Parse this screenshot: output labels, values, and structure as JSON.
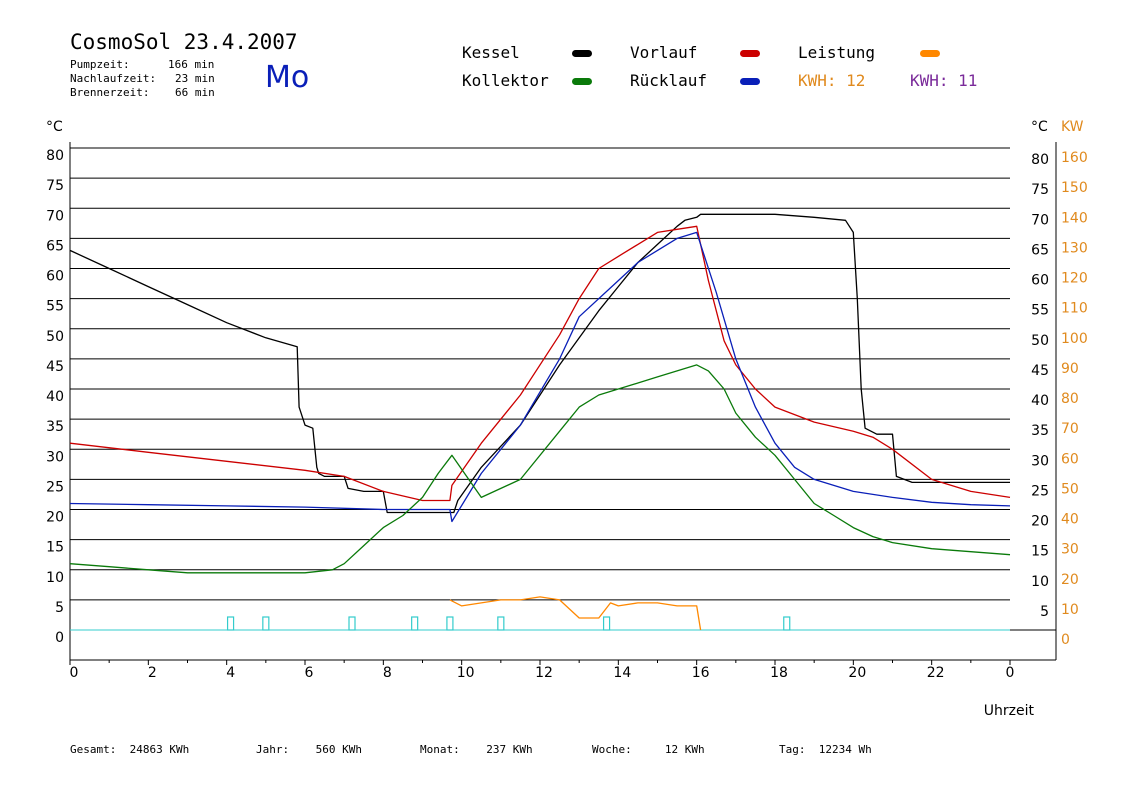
{
  "header": {
    "title": "CosmoSol 23.4.2007",
    "weekday": "Mo",
    "stats": [
      {
        "label": "Pumpzeit:",
        "value": "166 min"
      },
      {
        "label": "Nachlaufzeit:",
        "value": "23 min"
      },
      {
        "label": "Brennerzeit:",
        "value": "66 min"
      }
    ]
  },
  "legend": {
    "kessel": "Kessel",
    "kollektor": "Kollektor",
    "vorlauf": "Vorlauf",
    "ruecklauf": "Rücklauf",
    "leistung": "Leistung",
    "kwh1_label": "KWH:",
    "kwh1_value": "12",
    "kwh2_label": "KWH:",
    "kwh2_value": "11"
  },
  "footer": {
    "gesamt_label": "Gesamt:",
    "gesamt_value": "24863 KWh",
    "jahr_label": "Jahr:",
    "jahr_value": "560 KWh",
    "monat_label": "Monat:",
    "monat_value": "237 KWh",
    "woche_label": "Woche:",
    "woche_value": "12 KWh",
    "tag_label": "Tag:",
    "tag_value": "12234 Wh"
  },
  "colors": {
    "kessel": "#000000",
    "kollektor": "#0a7a0a",
    "vorlauf": "#cc0000",
    "ruecklauf": "#0a1fb8",
    "leistung": "#ff8800",
    "kwh2": "#7a2a9a",
    "pump": "#33cccc",
    "right_axis": "#e08a1e"
  },
  "chart_data": {
    "type": "line",
    "xlabel": "Uhrzeit",
    "ylabel_left": "°C",
    "ylabel_right_temp": "°C",
    "ylabel_right_power": "KW",
    "xlim": [
      0,
      24
    ],
    "ylim": [
      0,
      80
    ],
    "x_ticks": [
      "0",
      "2",
      "4",
      "6",
      "8",
      "10",
      "12",
      "14",
      "16",
      "18",
      "20",
      "22",
      "0"
    ],
    "y_ticks_left": [
      "0",
      "5",
      "10",
      "15",
      "20",
      "25",
      "30",
      "35",
      "40",
      "45",
      "50",
      "55",
      "60",
      "65",
      "70",
      "75",
      "80"
    ],
    "y_ticks_right": [
      "5",
      "10",
      "15",
      "20",
      "25",
      "30",
      "35",
      "40",
      "45",
      "50",
      "55",
      "60",
      "65",
      "70",
      "75",
      "80"
    ],
    "y_ticks_power": [
      "0",
      "10",
      "20",
      "30",
      "40",
      "50",
      "60",
      "70",
      "80",
      "90",
      "100",
      "110",
      "120",
      "130",
      "140",
      "150",
      "160"
    ],
    "series": [
      {
        "name": "Kessel",
        "color": "#000000",
        "x": [
          0,
          1,
          2,
          3,
          4,
          5,
          5.8,
          5.85,
          6.0,
          6.2,
          6.3,
          6.35,
          6.5,
          7.0,
          7.1,
          7.5,
          8.0,
          8.1,
          9.0,
          9.8,
          9.9,
          10.5,
          11.5,
          12.5,
          13.5,
          14.0,
          14.5,
          15.0,
          15.5,
          15.7,
          16.0,
          16.1,
          17.0,
          18.0,
          19.0,
          19.8,
          20.0,
          20.1,
          20.2,
          20.3,
          20.6,
          21.0,
          21.1,
          21.5,
          22.5,
          23.5,
          24.0
        ],
        "y": [
          63,
          60,
          57,
          54,
          51,
          48.5,
          47,
          37,
          34,
          33.5,
          27,
          26,
          25.5,
          25.5,
          23.5,
          23,
          23,
          19.5,
          19.5,
          19.5,
          21.5,
          27,
          34,
          44,
          53,
          57,
          61,
          64,
          67,
          68,
          68.5,
          69,
          69,
          69,
          68.5,
          68,
          66,
          55,
          40,
          33.5,
          32.5,
          32.5,
          25.5,
          24.5,
          24.5,
          24.5,
          24.5
        ]
      },
      {
        "name": "Vorlauf",
        "color": "#cc0000",
        "x": [
          0,
          2,
          4,
          6,
          7,
          8,
          9,
          9.7,
          9.75,
          10.5,
          11.5,
          12.5,
          13.0,
          13.5,
          14.0,
          14.5,
          15.0,
          15.5,
          16.0,
          16.3,
          16.7,
          17.0,
          17.5,
          18.0,
          19.0,
          20.0,
          20.5,
          21.0,
          22.0,
          23.0,
          24.0
        ],
        "y": [
          31,
          29.5,
          28,
          26.5,
          25.5,
          23,
          21.5,
          21.5,
          24,
          31,
          39,
          49,
          55,
          60,
          62,
          64,
          66,
          66.5,
          67,
          58,
          48,
          44,
          40,
          37,
          34.5,
          33,
          32,
          30,
          25,
          23,
          22
        ]
      },
      {
        "name": "Rücklauf",
        "color": "#0a1fb8",
        "x": [
          0,
          2,
          4,
          6,
          8,
          9,
          9.7,
          9.75,
          10.5,
          11.5,
          12.5,
          13.0,
          14.0,
          14.5,
          15.0,
          15.5,
          16.0,
          16.5,
          17.0,
          17.5,
          18.0,
          18.5,
          19.0,
          20.0,
          21.0,
          22.0,
          23.0,
          24.0
        ],
        "y": [
          21,
          20.8,
          20.6,
          20.4,
          20,
          20,
          20,
          18,
          26,
          34,
          45,
          52,
          58,
          61,
          63,
          65,
          66,
          56,
          45,
          37,
          31,
          27,
          25,
          23,
          22,
          21.2,
          20.8,
          20.6
        ]
      },
      {
        "name": "Kollektor",
        "color": "#0a7a0a",
        "x": [
          0,
          1,
          2,
          3,
          4,
          5,
          6,
          6.7,
          7.0,
          7.5,
          8.0,
          8.5,
          9.0,
          9.4,
          9.75,
          10.5,
          11.5,
          12.5,
          13.0,
          13.5,
          14.0,
          14.5,
          15.0,
          15.5,
          16.0,
          16.3,
          16.7,
          17.0,
          17.5,
          18.0,
          18.5,
          19.0,
          19.5,
          20.0,
          20.5,
          21.0,
          22.0,
          23.0,
          24.0
        ],
        "y": [
          11,
          10.5,
          10,
          9.5,
          9.5,
          9.5,
          9.5,
          10,
          11,
          14,
          17,
          19,
          22,
          26,
          29,
          22,
          25,
          33,
          37,
          39,
          40,
          41,
          42,
          43,
          44,
          43,
          40,
          36,
          32,
          29,
          25,
          21,
          19,
          17,
          15.5,
          14.5,
          13.5,
          13,
          12.5
        ]
      },
      {
        "name": "Leistung",
        "color": "#ff8800",
        "x": [
          9.7,
          10.0,
          10.5,
          11.0,
          11.5,
          12.0,
          12.5,
          13.0,
          13.5,
          13.8,
          14.0,
          14.5,
          15.0,
          15.5,
          16.0,
          16.1
        ],
        "y": [
          5,
          4,
          4.5,
          5,
          5,
          5.5,
          5,
          2,
          2,
          4.5,
          4,
          4.5,
          4.5,
          4,
          4,
          0
        ]
      },
      {
        "name": "Pumpe",
        "color": "#33cccc",
        "x": [
          4.1,
          5.0,
          7.2,
          8.8,
          9.7,
          11.0,
          13.7,
          18.3
        ],
        "y": [
          0,
          0,
          0,
          0,
          0,
          0,
          0,
          0
        ]
      }
    ]
  }
}
